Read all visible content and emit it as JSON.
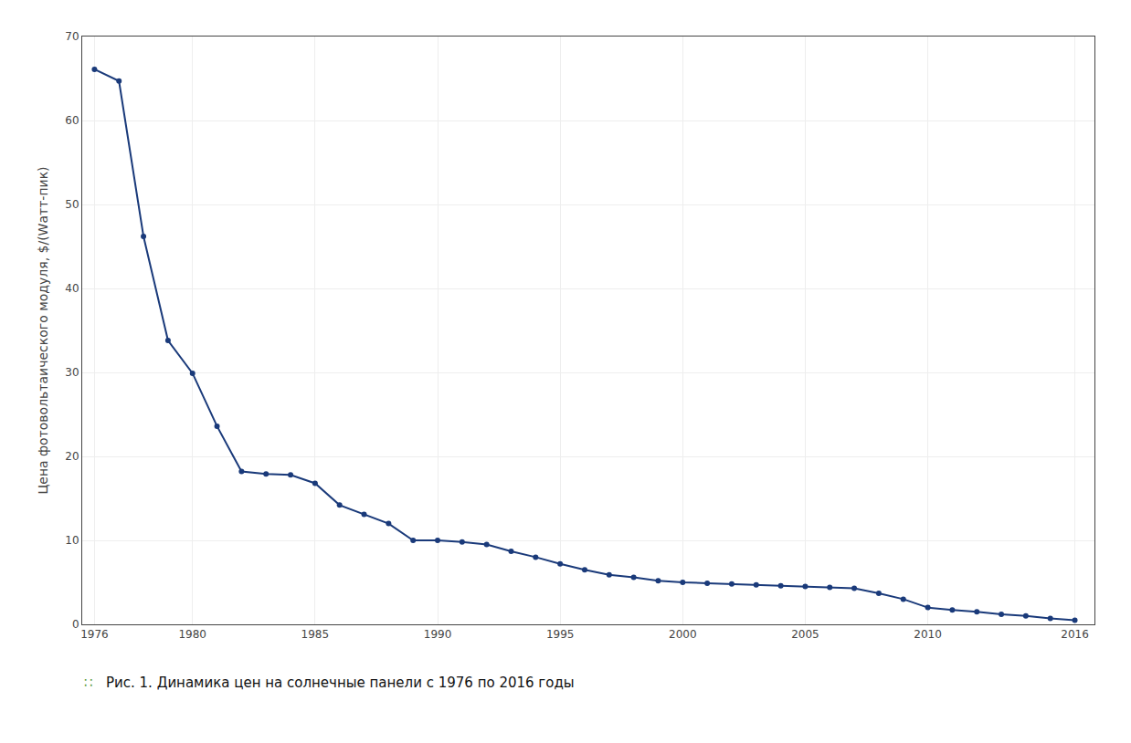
{
  "chart_data": {
    "type": "line",
    "x": [
      1976,
      1977,
      1978,
      1979,
      1980,
      1981,
      1982,
      1983,
      1984,
      1985,
      1986,
      1987,
      1988,
      1989,
      1990,
      1991,
      1992,
      1993,
      1994,
      1995,
      1996,
      1997,
      1998,
      1999,
      2000,
      2001,
      2002,
      2003,
      2004,
      2005,
      2006,
      2007,
      2008,
      2009,
      2010,
      2011,
      2012,
      2013,
      2014,
      2015,
      2016
    ],
    "values": [
      66.1,
      64.7,
      46.2,
      33.8,
      29.9,
      23.6,
      18.2,
      17.9,
      17.8,
      16.8,
      14.2,
      13.1,
      12.0,
      10.0,
      10.0,
      9.8,
      9.5,
      8.7,
      8.0,
      7.2,
      6.5,
      5.9,
      5.6,
      5.2,
      5.0,
      4.9,
      4.8,
      4.7,
      4.6,
      4.5,
      4.4,
      4.3,
      3.7,
      3.0,
      2.0,
      1.7,
      1.5,
      1.2,
      1.0,
      0.7,
      0.5
    ],
    "color": "#1a3a7a",
    "marker": "circle",
    "ylabel": "Цена фотовольтаического модуля, $/(Wатт-пик)",
    "annotations": [
      {
        "text": "∷",
        "color": "#5a9a3a"
      },
      {
        "text": "Рис. 1. Динамика цен на солнечные панели с 1976 по 2016 годы",
        "color": "#111111"
      }
    ],
    "xlim": [
      1975.5,
      2016.8
    ],
    "xticks": [
      1976,
      1980,
      1985,
      1990,
      1995,
      2000,
      2005,
      2010,
      2016
    ],
    "ylim": [
      0,
      70
    ],
    "yticks": [
      0,
      10,
      20,
      30,
      40,
      50,
      60,
      70
    ],
    "grid": true
  }
}
